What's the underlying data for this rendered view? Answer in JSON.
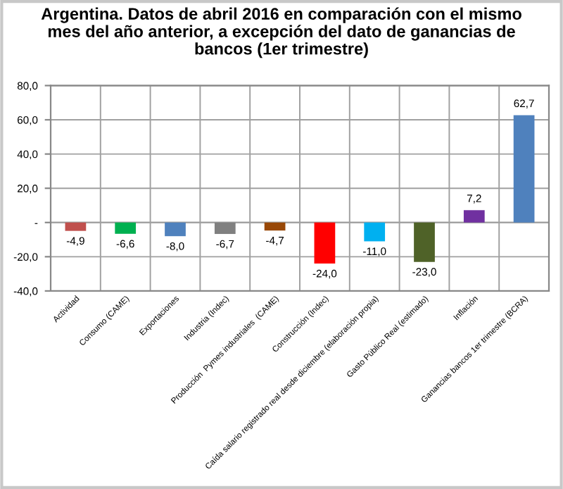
{
  "chart_data": {
    "type": "bar",
    "title": "Argentina. Datos de abril 2016 en comparación con el mismo\nmes del año anterior, a excepción del dato de ganancias de\nbancos (1er trimestre)",
    "categories": [
      "Actividad",
      "Consumo (CAME)",
      "Exportaciones",
      "Industria (Indec)",
      "Producción  Pymes industriales  (CAME)",
      "Construcción (Indec)",
      "Caída salario registrado real desde diciembre (elaboración propia)",
      "Gasto Público Real (estimado)",
      "Inflación",
      "Ganancias bancos 1er trimestre (BCRA)"
    ],
    "values": [
      -4.9,
      -6.6,
      -8.0,
      -6.7,
      -4.7,
      -24.0,
      -11.0,
      -23.0,
      7.2,
      62.7
    ],
    "value_labels": [
      "-4,9",
      "-6,6",
      "-8,0",
      "-6,7",
      "-4,7",
      "-24,0",
      "-11,0",
      "-23,0",
      "7,2",
      "62,7"
    ],
    "colors": [
      "#c0504d",
      "#00b050",
      "#4f81bd",
      "#808080",
      "#984807",
      "#ff0000",
      "#00b0f0",
      "#4f6228",
      "#7030a0",
      "#4f81bd"
    ],
    "ylim": [
      -40,
      80
    ],
    "yticks": [
      {
        "value": -40,
        "label": "-40,0"
      },
      {
        "value": -20,
        "label": "-20,0"
      },
      {
        "value": 0,
        "label": "-"
      },
      {
        "value": 20,
        "label": "20,0"
      },
      {
        "value": 40,
        "label": "40,0"
      },
      {
        "value": 60,
        "label": "60,0"
      },
      {
        "value": 80,
        "label": "80,0"
      }
    ],
    "grid": true
  }
}
